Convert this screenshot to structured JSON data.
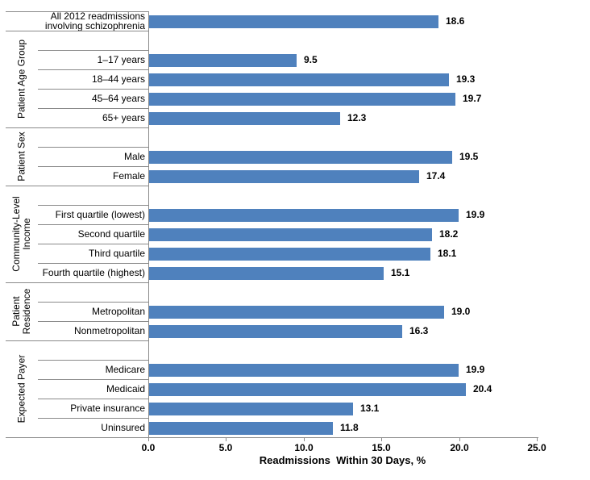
{
  "chart_data": {
    "type": "bar",
    "orientation": "horizontal",
    "title": "",
    "xlabel": "Readmissions  Within 30 Days, %",
    "ylabel": "",
    "xlim": [
      0,
      25
    ],
    "xticks": [
      "0.0",
      "5.0",
      "10.0",
      "15.0",
      "20.0",
      "25.0"
    ],
    "xtick_values": [
      0,
      5,
      10,
      15,
      20,
      25
    ],
    "grid": false,
    "legend": false,
    "bar_color": "#4F81BD",
    "value_label_decimals": 1,
    "groups": [
      {
        "label": "",
        "items": [
          {
            "category": "All 2012 readmissions involving schizophrenia",
            "value": 18.6
          }
        ]
      },
      {
        "label": "Patient Age Group",
        "items": [
          {
            "category": "1–17 years",
            "value": 9.5
          },
          {
            "category": "18–44 years",
            "value": 19.3
          },
          {
            "category": "45–64 years",
            "value": 19.7
          },
          {
            "category": "65+ years",
            "value": 12.3
          }
        ]
      },
      {
        "label": "Patient Sex",
        "items": [
          {
            "category": "Male",
            "value": 19.5
          },
          {
            "category": "Female",
            "value": 17.4
          }
        ]
      },
      {
        "label": "Community-Level Income",
        "items": [
          {
            "category": "First quartile (lowest)",
            "value": 19.9
          },
          {
            "category": "Second quartile",
            "value": 18.2
          },
          {
            "category": "Third quartile",
            "value": 18.1
          },
          {
            "category": "Fourth quartile (highest)",
            "value": 15.1
          }
        ]
      },
      {
        "label": "Patient Residence",
        "items": [
          {
            "category": "Metropolitan",
            "value": 19.0
          },
          {
            "category": "Nonmetropolitan",
            "value": 16.3
          }
        ]
      },
      {
        "label": "Expected Payer",
        "items": [
          {
            "category": "Medicare",
            "value": 19.9
          },
          {
            "category": "Medicaid",
            "value": 20.4
          },
          {
            "category": "Private insurance",
            "value": 13.1
          },
          {
            "category": "Uninsured",
            "value": 11.8
          }
        ]
      }
    ]
  }
}
